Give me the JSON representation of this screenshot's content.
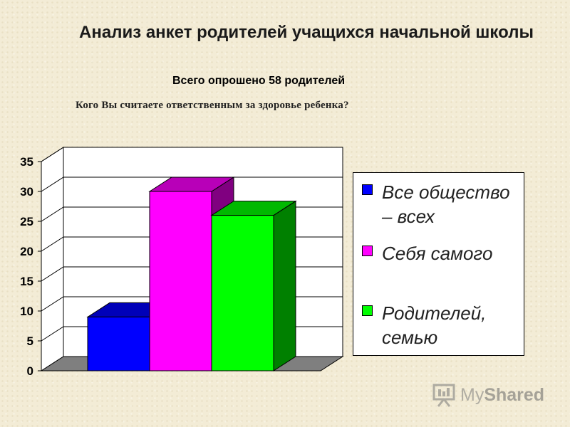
{
  "title": "Анализ анкет родителей учащихся начальной школы",
  "subtitle": "Всего опрошено 58 родителей",
  "question": "Кого Вы считаете ответственным за здоровье ребенка?",
  "watermark": {
    "text_light": "My",
    "text_bold": "Shared",
    "icon": "presentation-board-icon"
  },
  "chart_data": {
    "type": "bar",
    "title": "",
    "xlabel": "",
    "ylabel": "",
    "ylim": [
      0,
      35
    ],
    "yticks": [
      0,
      5,
      10,
      15,
      20,
      25,
      30,
      35
    ],
    "grid": true,
    "legend_position": "right",
    "series": [
      {
        "name": "Все общество – всех",
        "value": 9,
        "color": "#0000ff"
      },
      {
        "name": "Себя самого",
        "value": 30,
        "color": "#ff00ff"
      },
      {
        "name": "Родителей, семью",
        "value": 26,
        "color": "#00ff00"
      }
    ]
  }
}
